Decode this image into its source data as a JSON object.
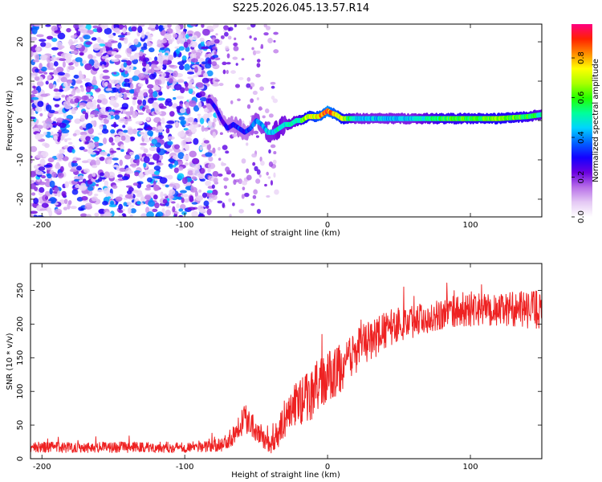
{
  "title": "S225.2026.045.13.57.R14",
  "chart_data": [
    {
      "type": "heatmap",
      "name": "spectrogram",
      "xlabel": "Height of straight line (km)",
      "ylabel": "Frequency (Hz)",
      "xlim": [
        -208,
        150
      ],
      "ylim": [
        -24.5,
        24.5
      ],
      "xticks": [
        -200,
        -100,
        0,
        100
      ],
      "yticks": [
        -20,
        -10,
        0,
        10,
        20
      ],
      "colorbar": {
        "label": "Normalized spectral amplitude",
        "range": [
          0,
          0.97
        ],
        "ticks": [
          "0.0",
          "0.2",
          "0.4",
          "0.6",
          "0.8"
        ],
        "colors": [
          "#ffffff",
          "#e4c8f4",
          "#b870e8",
          "#6a00e0",
          "#1400ff",
          "#0064ff",
          "#00d4ff",
          "#00ff9a",
          "#22ff00",
          "#aaff00",
          "#ffff00",
          "#ff8c00",
          "#ff2200",
          "#ff0080"
        ]
      },
      "signal_trace": {
        "x": [
          -82,
          -78,
          -74,
          -70,
          -66,
          -62,
          -58,
          -54,
          -50,
          -46,
          -42,
          -38,
          -34,
          -30,
          -26,
          -22,
          -18,
          -14,
          -10,
          -6,
          -2,
          0,
          2,
          6,
          10,
          14,
          20,
          30,
          40,
          60,
          80,
          100,
          120,
          140,
          150
        ],
        "frequency": [
          5,
          3,
          0,
          -2,
          -1,
          -2,
          -3,
          -2,
          0,
          -1,
          -3,
          -3,
          -2,
          -1,
          -1,
          0,
          0,
          1,
          1,
          1,
          2,
          2.5,
          2,
          1.5,
          0.5,
          0.5,
          0.5,
          0.5,
          0.5,
          0.5,
          0.5,
          0.5,
          0.5,
          1,
          1.5
        ],
        "amplitude": [
          0.25,
          0.3,
          0.25,
          0.3,
          0.3,
          0.35,
          0.3,
          0.35,
          0.4,
          0.4,
          0.45,
          0.45,
          0.5,
          0.45,
          0.5,
          0.5,
          0.6,
          0.7,
          0.75,
          0.8,
          0.85,
          0.9,
          0.85,
          0.8,
          0.7,
          0.6,
          0.45,
          0.45,
          0.45,
          0.45,
          0.6,
          0.6,
          0.65,
          0.6,
          0.5
        ]
      },
      "noise_region": {
        "x_from": -208,
        "x_to": -80,
        "amplitude_range": [
          0.05,
          0.45
        ]
      }
    },
    {
      "type": "line",
      "name": "snr",
      "xlabel": "Height of straight line (km)",
      "ylabel": "SNR (10 * v/v)",
      "xlim": [
        -208,
        150
      ],
      "ylim": [
        0,
        290
      ],
      "xticks": [
        -200,
        -100,
        0,
        100
      ],
      "yticks": [
        0,
        50,
        100,
        150,
        200,
        250
      ],
      "color": "#ee2222",
      "series": [
        {
          "name": "SNR",
          "x": [
            -208,
            -180,
            -150,
            -120,
            -100,
            -85,
            -75,
            -68,
            -62,
            -58,
            -55,
            -50,
            -45,
            -40,
            -36,
            -33,
            -30,
            -25,
            -20,
            -15,
            -10,
            -5,
            0,
            5,
            10,
            15,
            20,
            30,
            40,
            50,
            60,
            70,
            80,
            90,
            100,
            110,
            120,
            130,
            140,
            150
          ],
          "mean": [
            17,
            17,
            17,
            17,
            17,
            18,
            20,
            30,
            50,
            60,
            58,
            45,
            30,
            22,
            25,
            45,
            60,
            75,
            85,
            90,
            100,
            110,
            120,
            128,
            135,
            145,
            160,
            175,
            190,
            200,
            205,
            210,
            215,
            218,
            220,
            222,
            220,
            223,
            220,
            222
          ],
          "spread": [
            8,
            8,
            8,
            8,
            8,
            8,
            10,
            14,
            20,
            22,
            22,
            20,
            14,
            14,
            16,
            22,
            28,
            32,
            36,
            38,
            40,
            40,
            40,
            38,
            36,
            34,
            32,
            30,
            28,
            26,
            25,
            24,
            24,
            24,
            24,
            24,
            24,
            26,
            28,
            30
          ]
        }
      ]
    }
  ]
}
